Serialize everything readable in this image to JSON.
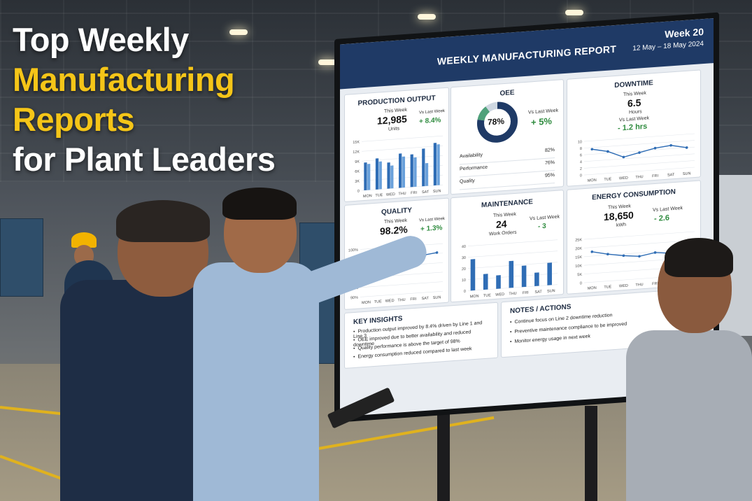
{
  "headline": {
    "line1": "Top Weekly",
    "line2": "Manufacturing",
    "line3": "Reports",
    "line4": "for Plant Leaders"
  },
  "colors": {
    "accent_yellow": "#f5c518",
    "header_navy": "#1f3a66",
    "bar_blue": "#2f6db5",
    "positive_green": "#2e8b3e"
  },
  "report": {
    "title": "WEEKLY MANUFACTURING REPORT",
    "week": "Week 20",
    "range": "12 May – 18 May 2024",
    "days": [
      "MON",
      "TUE",
      "WED",
      "THU",
      "FRI",
      "SAT",
      "SUN"
    ],
    "production": {
      "title": "PRODUCTION OUTPUT",
      "this_week_label": "This Week",
      "value": "12,985",
      "unit": "Units",
      "vs_label": "Vs Last Week",
      "delta": "+ 8.4%",
      "y_ticks": [
        "15K",
        "12K",
        "9K",
        "6K",
        "3K",
        "0"
      ],
      "chart_data": {
        "type": "bar",
        "categories": [
          "MON",
          "TUE",
          "WED",
          "THU",
          "FRI",
          "SAT",
          "SUN"
        ],
        "series": [
          {
            "values": [
              8.5,
              9.5,
              8,
              10.5,
              10,
              11.5,
              13
            ]
          },
          {
            "values": [
              8,
              8.5,
              7,
              9.5,
              9,
              7,
              12.5
            ]
          }
        ],
        "ylim": [
          0,
          15
        ]
      }
    },
    "oee": {
      "title": "OEE",
      "value": "78%",
      "percent": 78,
      "vs_label": "Vs Last Week",
      "delta": "+ 5%",
      "rows": [
        {
          "label": "Availability",
          "value": "82%"
        },
        {
          "label": "Performance",
          "value": "76%"
        },
        {
          "label": "Quality",
          "value": "95%"
        }
      ]
    },
    "downtime": {
      "title": "DOWNTIME",
      "this_week_label": "This Week",
      "value": "6.5",
      "unit": "Hours",
      "vs_label": "Vs Last Week",
      "delta": "- 1.2 hrs",
      "y_ticks": [
        "10",
        "8",
        "6",
        "4",
        "2",
        "0"
      ],
      "chart_data": {
        "type": "line",
        "categories": [
          "MON",
          "TUE",
          "WED",
          "THU",
          "FRI",
          "SAT",
          "SUN"
        ],
        "values": [
          7.5,
          6.5,
          4.5,
          5.5,
          6.5,
          7,
          6
        ],
        "ylim": [
          0,
          10
        ]
      }
    },
    "quality": {
      "title": "QUALITY",
      "this_week_label": "This Week",
      "value": "98.2%",
      "vs_label": "Vs Last Week",
      "delta": "+ 1.3%",
      "y_ticks": [
        "100%",
        "98%",
        "96%",
        "94%",
        "92%",
        "90%"
      ],
      "chart_data": {
        "type": "line",
        "categories": [
          "MON",
          "TUE",
          "WED",
          "THU",
          "FRI",
          "SAT",
          "SUN"
        ],
        "values": [
          97.5,
          98.2,
          97.8,
          98.3,
          98,
          97.9,
          98.2
        ],
        "ylim": [
          90,
          100
        ]
      }
    },
    "maintenance": {
      "title": "MAINTENANCE",
      "this_week_label": "This Week",
      "value": "24",
      "unit": "Work Orders",
      "vs_label": "Vs Last Week",
      "delta": "- 3",
      "y_ticks": [
        "40",
        "30",
        "20",
        "10",
        "0"
      ],
      "chart_data": {
        "type": "bar",
        "categories": [
          "MON",
          "TUE",
          "WED",
          "THU",
          "FRI",
          "SAT",
          "SUN"
        ],
        "values": [
          28,
          14,
          12,
          24,
          19,
          12,
          20
        ],
        "ylim": [
          0,
          40
        ]
      }
    },
    "energy": {
      "title": "ENERGY CONSUMPTION",
      "this_week_label": "This Week",
      "value": "18,650",
      "unit": "kWh",
      "vs_label": "Vs Last Week",
      "delta": "- 2.6",
      "y_ticks": [
        "25K",
        "20K",
        "15K",
        "10K",
        "5K",
        "0"
      ],
      "chart_data": {
        "type": "line",
        "categories": [
          "MON",
          "TUE",
          "WED",
          "THU",
          "FRI",
          "SAT",
          "SUN"
        ],
        "values": [
          17.5,
          15.5,
          14,
          13,
          14.5,
          13.5,
          15
        ],
        "ylim": [
          0,
          25
        ]
      }
    },
    "insights": {
      "title": "KEY INSIGHTS",
      "items": [
        "Production output improved by 8.4% driven by Line 1 and Line 3",
        "OEE improved due to better availability and reduced downtime",
        "Quality performance is above the target of 98%",
        "Energy consumption reduced compared to last week"
      ]
    },
    "notes": {
      "title": "NOTES / ACTIONS",
      "items": [
        "Continue focus on Line 2 downtime reduction",
        "Preventive maintenance compliance to be improved",
        "Monitor energy usage in next week"
      ]
    }
  }
}
